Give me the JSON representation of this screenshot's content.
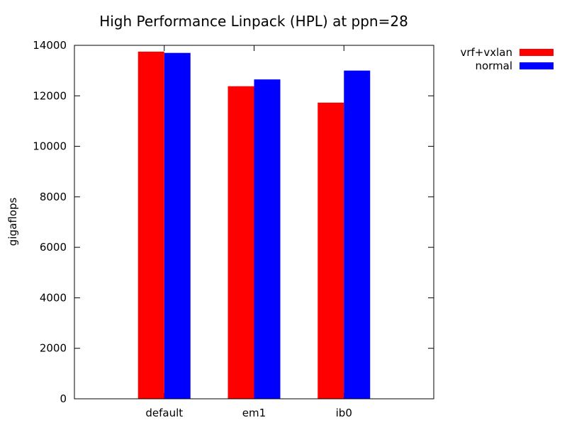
{
  "chart_data": {
    "type": "bar",
    "title": "High Performance Linpack (HPL) at ppn=28",
    "xlabel": "",
    "ylabel": "gigaflops",
    "categories": [
      "default",
      "em1",
      "ib0"
    ],
    "series": [
      {
        "name": "vrf+vxlan",
        "color": "#ff0000",
        "values": [
          13750,
          12380,
          11730
        ]
      },
      {
        "name": "normal",
        "color": "#0000ff",
        "values": [
          13700,
          12650,
          13000
        ]
      }
    ],
    "ylim": [
      0,
      14000
    ],
    "yticks": [
      "0",
      "2000",
      "4000",
      "6000",
      "8000",
      "10000",
      "12000",
      "14000"
    ],
    "grid": false,
    "legend_position": "outside-top-right"
  }
}
